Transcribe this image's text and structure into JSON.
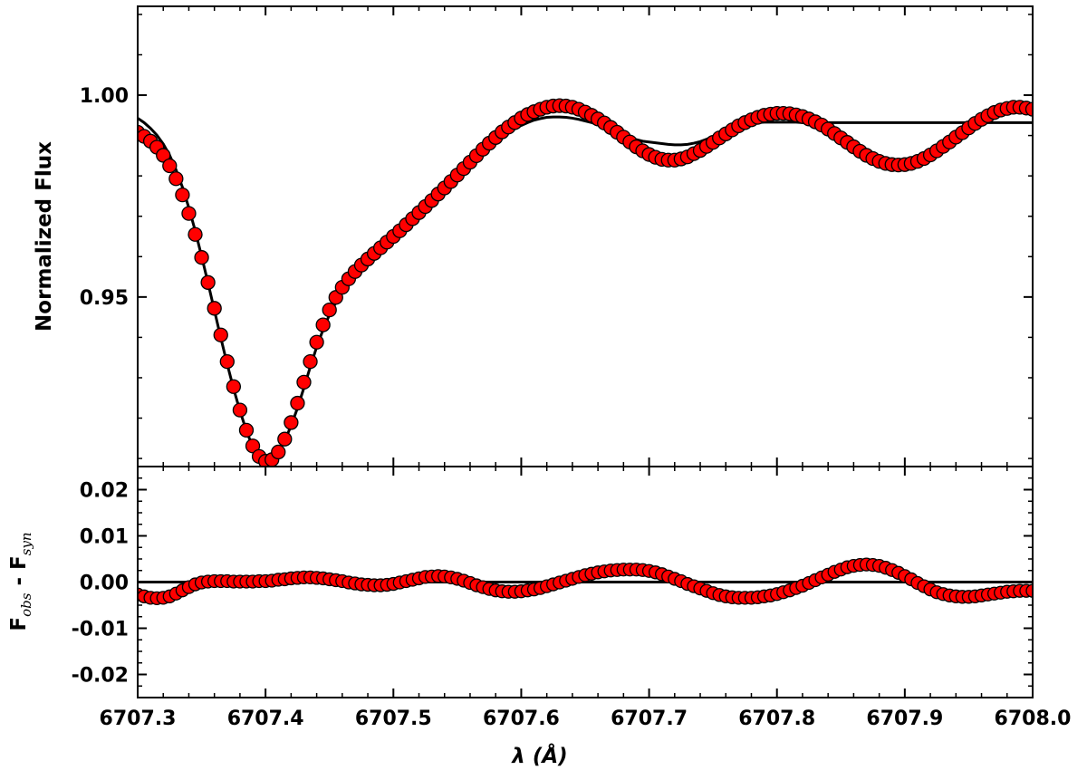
{
  "chart_data": [
    {
      "type": "scatter",
      "panel": "top",
      "title": "",
      "xlabel": "",
      "ylabel": "Normalized Flux",
      "xlim": [
        6707.3,
        6708.0
      ],
      "ylim": [
        0.908,
        1.022
      ],
      "yticks": [
        0.95,
        1.0
      ],
      "ytick_labels": [
        "0.95",
        "1.00"
      ],
      "grid": false,
      "legend": "none",
      "series": [
        {
          "kind": "scatter",
          "color": "#ff0000",
          "edge_color": "#000000",
          "x": [
            6707.3,
            6707.305,
            6707.31,
            6707.315,
            6707.32,
            6707.325,
            6707.33,
            6707.335,
            6707.34,
            6707.345,
            6707.35,
            6707.355,
            6707.36,
            6707.365,
            6707.37,
            6707.375,
            6707.38,
            6707.385,
            6707.39,
            6707.395,
            6707.4,
            6707.405,
            6707.41,
            6707.415,
            6707.42,
            6707.425,
            6707.43,
            6707.435,
            6707.44,
            6707.445,
            6707.45,
            6707.455,
            6707.46,
            6707.465,
            6707.47,
            6707.475,
            6707.48,
            6707.485,
            6707.49,
            6707.495,
            6707.5,
            6707.505,
            6707.51,
            6707.515,
            6707.52,
            6707.525,
            6707.53,
            6707.535,
            6707.54,
            6707.545,
            6707.55,
            6707.555,
            6707.56,
            6707.565,
            6707.57,
            6707.575,
            6707.58,
            6707.585,
            6707.59,
            6707.595,
            6707.6,
            6707.605,
            6707.61,
            6707.615,
            6707.62,
            6707.625,
            6707.63,
            6707.635,
            6707.64,
            6707.645,
            6707.65,
            6707.655,
            6707.66,
            6707.665,
            6707.67,
            6707.675,
            6707.68,
            6707.685,
            6707.69,
            6707.695,
            6707.7,
            6707.705,
            6707.71,
            6707.715,
            6707.72,
            6707.725,
            6707.73,
            6707.735,
            6707.74,
            6707.745,
            6707.75,
            6707.755,
            6707.76,
            6707.765,
            6707.77,
            6707.775,
            6707.78,
            6707.785,
            6707.79,
            6707.795,
            6707.8,
            6707.805,
            6707.81,
            6707.815,
            6707.82,
            6707.825,
            6707.83,
            6707.835,
            6707.84,
            6707.845,
            6707.85,
            6707.855,
            6707.86,
            6707.865,
            6707.87,
            6707.875,
            6707.88,
            6707.885,
            6707.89,
            6707.895,
            6707.9,
            6707.905,
            6707.91,
            6707.915,
            6707.92,
            6707.925,
            6707.93,
            6707.935,
            6707.94,
            6707.945,
            6707.95,
            6707.955,
            6707.96,
            6707.965,
            6707.97,
            6707.975,
            6707.98,
            6707.985,
            6707.99,
            6707.995,
            6708.0
          ],
          "y": [
            0.9908,
            0.9898,
            0.9886,
            0.9871,
            0.9851,
            0.9825,
            0.9793,
            0.9753,
            0.9707,
            0.9655,
            0.9598,
            0.9536,
            0.9472,
            0.9406,
            0.934,
            0.9278,
            0.922,
            0.917,
            0.9131,
            0.9105,
            0.9093,
            0.9097,
            0.9116,
            0.9148,
            0.9189,
            0.9237,
            0.9289,
            0.934,
            0.9388,
            0.9431,
            0.9468,
            0.9499,
            0.9524,
            0.9545,
            0.9563,
            0.9579,
            0.9594,
            0.9608,
            0.9622,
            0.9636,
            0.965,
            0.9664,
            0.9679,
            0.9694,
            0.9709,
            0.9724,
            0.9739,
            0.9755,
            0.977,
            0.9786,
            0.9802,
            0.9818,
            0.9834,
            0.985,
            0.9866,
            0.9881,
            0.9895,
            0.9909,
            0.9921,
            0.9932,
            0.9943,
            0.9952,
            0.9959,
            0.9965,
            0.997,
            0.9973,
            0.9974,
            0.9973,
            0.997,
            0.9965,
            0.9958,
            0.995,
            0.9941,
            0.9931,
            0.992,
            0.9908,
            0.9896,
            0.9884,
            0.9872,
            0.9862,
            0.9853,
            0.9846,
            0.9841,
            0.9839,
            0.9839,
            0.9842,
            0.9847,
            0.9855,
            0.9863,
            0.9873,
            0.9883,
            0.9894,
            0.9904,
            0.9914,
            0.9924,
            0.9932,
            0.9939,
            0.9945,
            0.995,
            0.9953,
            0.9955,
            0.9955,
            0.9954,
            0.9951,
            0.9947,
            0.9941,
            0.9934,
            0.9926,
            0.9916,
            0.9905,
            0.9894,
            0.9883,
            0.9872,
            0.9861,
            0.9851,
            0.9843,
            0.9836,
            0.9831,
            0.9828,
            0.9827,
            0.9828,
            0.9831,
            0.9836,
            0.9843,
            0.9852,
            0.9862,
            0.9873,
            0.9884,
            0.9896,
            0.9907,
            0.9919,
            0.993,
            0.994,
            0.9949,
            0.9957,
            0.9963,
            0.9967,
            0.997,
            0.997,
            0.9968,
            0.9965
          ]
        },
        {
          "kind": "line",
          "color": "#000000",
          "x": [
            6707.3,
            6707.305,
            6707.31,
            6707.315,
            6707.32,
            6707.325,
            6707.33,
            6707.335,
            6707.34,
            6707.345,
            6707.35,
            6707.355,
            6707.36,
            6707.365,
            6707.37,
            6707.375,
            6707.38,
            6707.385,
            6707.39,
            6707.395,
            6707.4,
            6707.405,
            6707.41,
            6707.415,
            6707.42,
            6707.425,
            6707.43,
            6707.435,
            6707.44,
            6707.445,
            6707.45,
            6707.455,
            6707.46,
            6707.465,
            6707.47,
            6707.475,
            6707.48,
            6707.485,
            6707.49,
            6707.495,
            6707.5,
            6707.505,
            6707.51,
            6707.515,
            6707.52,
            6707.525,
            6707.53,
            6707.535,
            6707.54,
            6707.545,
            6707.55,
            6707.555,
            6707.56,
            6707.565,
            6707.57,
            6707.575,
            6707.58,
            6707.585,
            6707.59,
            6707.595,
            6707.6,
            6707.605,
            6707.61,
            6707.615,
            6707.62,
            6707.625,
            6707.63,
            6707.635,
            6707.64,
            6707.645,
            6707.65,
            6707.655,
            6707.66,
            6707.665,
            6707.67,
            6707.675,
            6707.68,
            6707.685,
            6707.69,
            6707.695,
            6707.7,
            6707.705,
            6707.71,
            6707.715,
            6707.72,
            6707.725,
            6707.73,
            6707.735,
            6707.74,
            6707.745,
            6707.75,
            6707.755,
            6707.76,
            6707.765,
            6707.77,
            6707.775,
            6707.78,
            6707.785,
            6707.79,
            6707.795,
            6707.8,
            6707.805,
            6707.81,
            6707.815,
            6707.82,
            6707.825,
            6707.83,
            6707.835,
            6707.84,
            6707.845,
            6707.85,
            6707.855,
            6707.86,
            6707.865,
            6707.87,
            6707.875,
            6707.88,
            6707.885,
            6707.89,
            6707.895,
            6707.9,
            6707.905,
            6707.91,
            6707.915,
            6707.92,
            6707.925,
            6707.93,
            6707.935,
            6707.94,
            6707.945,
            6707.95,
            6707.955,
            6707.96,
            6707.965,
            6707.97,
            6707.975,
            6707.98,
            6707.985,
            6707.99,
            6707.995,
            6708.0
          ],
          "y": [
            0.9943,
            0.9932,
            0.9918,
            0.9901,
            0.9879,
            0.9851,
            0.9815,
            0.9772,
            0.9721,
            0.9664,
            0.9601,
            0.9535,
            0.9467,
            0.9399,
            0.9334,
            0.9273,
            0.9218,
            0.9169,
            0.9128,
            0.9101,
            0.909,
            0.9097,
            0.9117,
            0.9144,
            0.9181,
            0.9225,
            0.9275,
            0.9327,
            0.9376,
            0.9419,
            0.9456,
            0.9486,
            0.9512,
            0.9536,
            0.9558,
            0.958,
            0.9598,
            0.9614,
            0.9629,
            0.9644,
            0.966,
            0.9676,
            0.9692,
            0.9708,
            0.9723,
            0.9738,
            0.9752,
            0.9766,
            0.978,
            0.9794,
            0.9808,
            0.9822,
            0.9836,
            0.9849,
            0.9862,
            0.9875,
            0.9887,
            0.9898,
            0.9908,
            0.9917,
            0.9925,
            0.9932,
            0.9938,
            0.9942,
            0.9945,
            0.9946,
            0.9946,
            0.9945,
            0.9943,
            0.994,
            0.9936,
            0.9932,
            0.9927,
            0.9921,
            0.9915,
            0.9908,
            0.9901,
            0.9895,
            0.989,
            0.9886,
            0.9884,
            0.9882,
            0.988,
            0.9878,
            0.9877,
            0.9877,
            0.9878,
            0.9881,
            0.9885,
            0.9891,
            0.9897,
            0.9904,
            0.9911,
            0.9917,
            0.9923,
            0.9927,
            0.993,
            0.9932,
            0.9933,
            0.9933,
            0.9933,
            0.9933,
            0.9933,
            0.9933,
            0.9932,
            0.9932,
            0.9932,
            0.9932,
            0.9932,
            0.9932,
            0.9932,
            0.9932,
            0.9932,
            0.9932,
            0.9932,
            0.9932,
            0.9932,
            0.9932,
            0.9932,
            0.9932,
            0.9932,
            0.9932,
            0.9932,
            0.9932,
            0.9932,
            0.9932,
            0.9932,
            0.9932,
            0.9932,
            0.9932,
            0.9932,
            0.9932,
            0.9932,
            0.9932,
            0.9932,
            0.9932,
            0.9932,
            0.9932,
            0.9932,
            0.9932,
            0.9932
          ]
        }
      ]
    },
    {
      "type": "scatter",
      "panel": "bottom",
      "title": "",
      "xlabel": "λ (Å)",
      "ylabel": "F_obs - F_syn",
      "ylabel_parts": {
        "f1": "F",
        "sub1": "obs",
        "sep": " - ",
        "f2": "F",
        "sub2": "syn"
      },
      "xlim": [
        6707.3,
        6708.0
      ],
      "ylim": [
        -0.025,
        0.025
      ],
      "xticks": [
        6707.3,
        6707.4,
        6707.5,
        6707.6,
        6707.7,
        6707.8,
        6707.9,
        6708.0
      ],
      "xtick_labels": [
        "6707.3",
        "6707.4",
        "6707.5",
        "6707.6",
        "6707.7",
        "6707.8",
        "6707.9",
        "6708.0"
      ],
      "yticks": [
        -0.02,
        -0.01,
        0.0,
        0.01,
        0.02
      ],
      "ytick_labels": [
        "-0.02",
        "-0.01",
        "0.00",
        "0.01",
        "0.02"
      ],
      "grid": false,
      "legend": "none",
      "zero_line": 0.0,
      "series": [
        {
          "kind": "scatter",
          "color": "#ff0000",
          "edge_color": "#000000",
          "x": [
            6707.3,
            6707.305,
            6707.31,
            6707.315,
            6707.32,
            6707.325,
            6707.33,
            6707.335,
            6707.34,
            6707.345,
            6707.35,
            6707.355,
            6707.36,
            6707.365,
            6707.37,
            6707.375,
            6707.38,
            6707.385,
            6707.39,
            6707.395,
            6707.4,
            6707.405,
            6707.41,
            6707.415,
            6707.42,
            6707.425,
            6707.43,
            6707.435,
            6707.44,
            6707.445,
            6707.45,
            6707.455,
            6707.46,
            6707.465,
            6707.47,
            6707.475,
            6707.48,
            6707.485,
            6707.49,
            6707.495,
            6707.5,
            6707.505,
            6707.51,
            6707.515,
            6707.52,
            6707.525,
            6707.53,
            6707.535,
            6707.54,
            6707.545,
            6707.55,
            6707.555,
            6707.56,
            6707.565,
            6707.57,
            6707.575,
            6707.58,
            6707.585,
            6707.59,
            6707.595,
            6707.6,
            6707.605,
            6707.61,
            6707.615,
            6707.62,
            6707.625,
            6707.63,
            6707.635,
            6707.64,
            6707.645,
            6707.65,
            6707.655,
            6707.66,
            6707.665,
            6707.67,
            6707.675,
            6707.68,
            6707.685,
            6707.69,
            6707.695,
            6707.7,
            6707.705,
            6707.71,
            6707.715,
            6707.72,
            6707.725,
            6707.73,
            6707.735,
            6707.74,
            6707.745,
            6707.75,
            6707.755,
            6707.76,
            6707.765,
            6707.77,
            6707.775,
            6707.78,
            6707.785,
            6707.79,
            6707.795,
            6707.8,
            6707.805,
            6707.81,
            6707.815,
            6707.82,
            6707.825,
            6707.83,
            6707.835,
            6707.84,
            6707.845,
            6707.85,
            6707.855,
            6707.86,
            6707.865,
            6707.87,
            6707.875,
            6707.88,
            6707.885,
            6707.89,
            6707.895,
            6707.9,
            6707.905,
            6707.91,
            6707.915,
            6707.92,
            6707.925,
            6707.93,
            6707.935,
            6707.94,
            6707.945,
            6707.95,
            6707.955,
            6707.96,
            6707.965,
            6707.97,
            6707.975,
            6707.98,
            6707.985,
            6707.99,
            6707.995,
            6708.0
          ],
          "y": [
            -0.0027,
            -0.0031,
            -0.0034,
            -0.0035,
            -0.0034,
            -0.0031,
            -0.0025,
            -0.0018,
            -0.0011,
            -0.0005,
            -0.0001,
            0.0001,
            0.0002,
            0.0002,
            0.0002,
            0.0001,
            0.0001,
            0.0001,
            0.0001,
            0.0002,
            0.0002,
            0.0003,
            0.0005,
            0.0006,
            0.0008,
            0.0009,
            0.001,
            0.001,
            0.0009,
            0.0008,
            0.0006,
            0.0004,
            0.0002,
            -0.0001,
            -0.0003,
            -0.0005,
            -0.0006,
            -0.0007,
            -0.0007,
            -0.0006,
            -0.0004,
            -0.0001,
            0.0002,
            0.0005,
            0.0008,
            0.0011,
            0.0012,
            0.0013,
            0.0012,
            0.001,
            0.0007,
            0.0003,
            -0.0002,
            -0.0007,
            -0.0011,
            -0.0015,
            -0.0018,
            -0.002,
            -0.0021,
            -0.0021,
            -0.002,
            -0.0018,
            -0.0016,
            -0.0013,
            -0.0009,
            -0.0005,
            -0.0001,
            0.0003,
            0.0007,
            0.0011,
            0.0015,
            0.0018,
            0.0021,
            0.0023,
            0.0025,
            0.0026,
            0.0027,
            0.0027,
            0.0027,
            0.0026,
            0.0024,
            0.0021,
            0.0017,
            0.0012,
            0.0007,
            0.0002,
            -0.0004,
            -0.0009,
            -0.0014,
            -0.0019,
            -0.0024,
            -0.0028,
            -0.0031,
            -0.0033,
            -0.0034,
            -0.0034,
            -0.0034,
            -0.0033,
            -0.0031,
            -0.0029,
            -0.0026,
            -0.0022,
            -0.0018,
            -0.0013,
            -0.0008,
            -0.0002,
            0.0004,
            0.001,
            0.0016,
            0.0022,
            0.0027,
            0.0032,
            0.0035,
            0.0037,
            0.0038,
            0.0037,
            0.0035,
            0.0031,
            0.0026,
            0.002,
            0.0013,
            0.0006,
            -0.0002,
            -0.0009,
            -0.0016,
            -0.0022,
            -0.0026,
            -0.0029,
            -0.0031,
            -0.0032,
            -0.0032,
            -0.0031,
            -0.0029,
            -0.0027,
            -0.0025,
            -0.0023,
            -0.0021,
            -0.002,
            -0.0019,
            -0.0019,
            -0.0019
          ]
        }
      ]
    }
  ]
}
